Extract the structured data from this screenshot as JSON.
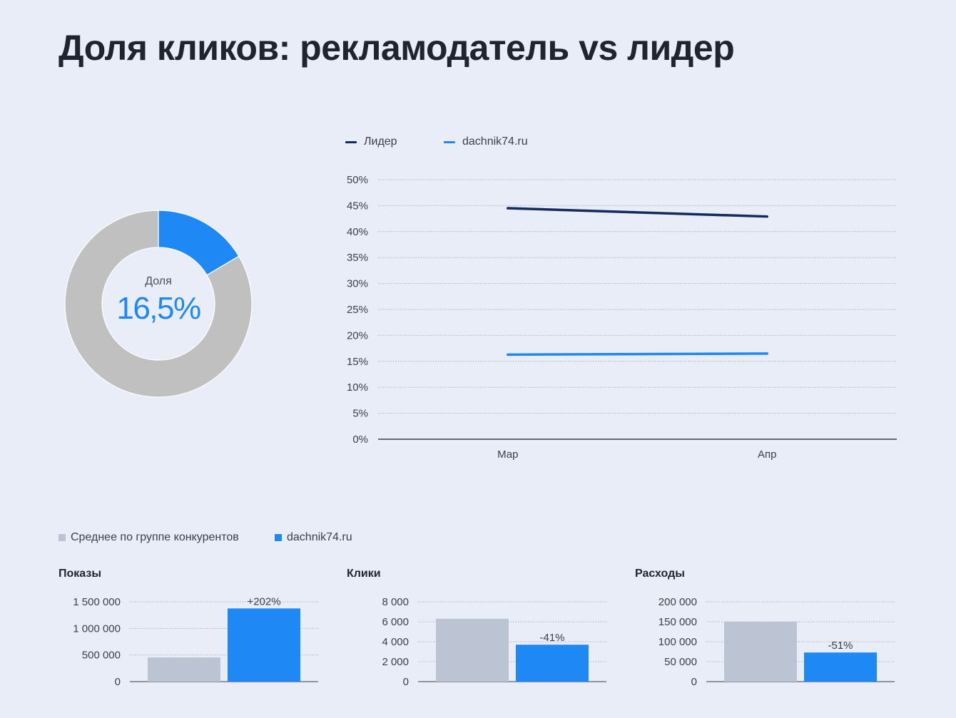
{
  "title": "Доля кликов: рекламодатель vs лидер",
  "colors": {
    "leader": "#142b5e",
    "advertiser": "#1e88f5",
    "competitors": "#bcc3d3",
    "donut_rest": "#c0c0c0",
    "grid": "#a9b1c2",
    "axis": "#3a3f4a"
  },
  "donut": {
    "label": "Доля",
    "value_text": "16,5%",
    "share": 0.165
  },
  "line_legend": [
    {
      "name": "Лидер",
      "color_key": "leader"
    },
    {
      "name": "dachnik74.ru",
      "color_key": "advertiser"
    }
  ],
  "bar_legend": [
    {
      "name": "Среднее по группе конкурентов",
      "color_key": "competitors"
    },
    {
      "name": "dachnik74.ru",
      "color_key": "advertiser"
    }
  ],
  "chart_data": [
    {
      "type": "pie",
      "labels": [
        "dachnik74.ru",
        ""
      ],
      "values": [
        16.5,
        83.5
      ],
      "center_text": "Доля 16,5%"
    },
    {
      "type": "line",
      "categories": [
        "Мар",
        "Апр"
      ],
      "series": [
        {
          "name": "Лидер",
          "values": [
            44.5,
            42.9
          ]
        },
        {
          "name": "dachnik74.ru",
          "values": [
            16.3,
            16.5
          ]
        }
      ],
      "ylim": [
        0,
        50
      ],
      "yticks": [
        "0%",
        "5%",
        "10%",
        "15%",
        "20%",
        "25%",
        "30%",
        "35%",
        "40%",
        "45%",
        "50%"
      ],
      "grid": true,
      "legend": "top-left"
    },
    {
      "type": "bar",
      "title": "Показы",
      "series": [
        {
          "name": "Среднее по группе конкурентов",
          "values": [
            455000
          ]
        },
        {
          "name": "dachnik74.ru",
          "values": [
            1375000
          ]
        }
      ],
      "ylim": [
        0,
        1500000
      ],
      "yticks": [
        "0",
        "500 000",
        "1 000 000",
        "1 500 000"
      ],
      "annotation": "+202%"
    },
    {
      "type": "bar",
      "title": "Клики",
      "series": [
        {
          "name": "Среднее по группе конкурентов",
          "values": [
            6300
          ]
        },
        {
          "name": "dachnik74.ru",
          "values": [
            3700
          ]
        }
      ],
      "ylim": [
        0,
        8000
      ],
      "yticks": [
        "0",
        "2 000",
        "4 000",
        "6 000",
        "8 000"
      ],
      "annotation": "-41%"
    },
    {
      "type": "bar",
      "title": "Расходы",
      "series": [
        {
          "name": "Среднее по группе конкурентов",
          "values": [
            150000
          ]
        },
        {
          "name": "dachnik74.ru",
          "values": [
            73000
          ]
        }
      ],
      "ylim": [
        0,
        200000
      ],
      "yticks": [
        "0",
        "50 000",
        "100 000",
        "150 000",
        "200 000"
      ],
      "annotation": "-51%"
    }
  ]
}
